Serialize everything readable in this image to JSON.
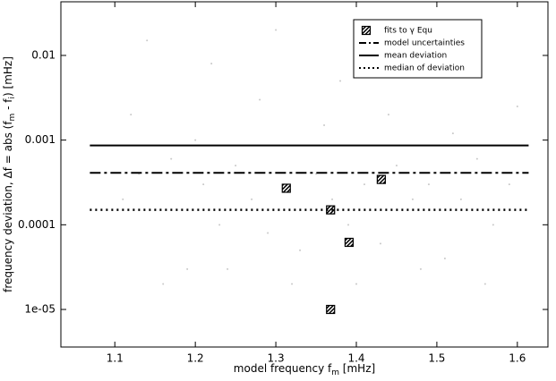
{
  "chart_data": {
    "type": "scatter",
    "x_label": [
      {
        "text": "model frequency f"
      },
      {
        "text": "m",
        "sub": true
      },
      {
        "text": " [mHz]"
      }
    ],
    "y_label": [
      {
        "text": "frequency deviation, Δf = abs (f"
      },
      {
        "text": "m",
        "sub": true
      },
      {
        "text": " - f"
      },
      {
        "text": "i",
        "sub": true
      },
      {
        "text": ") [mHz]"
      }
    ],
    "xlim": [
      1.033,
      1.638
    ],
    "xticks": [
      1.1,
      1.2,
      1.3,
      1.4,
      1.5,
      1.6
    ],
    "ylim": [
      3.6e-06,
      0.043
    ],
    "log_y": true,
    "yticks": [
      0.01,
      0.001,
      0.0001,
      {
        "value": 1e-05,
        "label": "1e-05"
      }
    ],
    "legend": "upper right",
    "series": [
      {
        "color": "#c8c8c8",
        "style": "dots",
        "x": [
          1.11,
          1.13,
          1.15,
          1.17,
          1.19,
          1.21,
          1.23,
          1.25,
          1.27,
          1.29,
          1.31,
          1.33,
          1.35,
          1.37,
          1.39,
          1.41,
          1.43,
          1.45,
          1.47,
          1.49,
          1.51,
          1.53,
          1.55,
          1.57,
          1.59,
          1.12,
          1.16,
          1.2,
          1.24,
          1.28,
          1.32,
          1.36,
          1.4,
          1.44,
          1.48,
          1.52,
          1.56,
          1.6,
          1.14,
          1.22,
          1.3,
          1.38,
          1.46,
          1.54
        ],
        "values": [
          0.0002,
          0.0004,
          0.00015,
          0.0006,
          3e-05,
          0.0003,
          0.0001,
          0.0005,
          0.0002,
          8e-05,
          0.0003,
          5e-05,
          0.0004,
          0.0002,
          0.0001,
          0.0003,
          6e-05,
          0.0005,
          0.0002,
          0.0003,
          4e-05,
          0.0002,
          0.0006,
          0.0001,
          0.0003,
          0.002,
          2e-05,
          0.001,
          3e-05,
          0.003,
          2e-05,
          0.0015,
          2e-05,
          0.002,
          3e-05,
          0.0012,
          2e-05,
          0.0025,
          0.015,
          0.008,
          0.02,
          0.005,
          0.012,
          0.006
        ]
      },
      {
        "name": "fits to γ Equ",
        "color": "#000000",
        "style": "hatched-square",
        "x": [
          1.313,
          1.368,
          1.391,
          1.431,
          1.368
        ],
        "values": [
          0.00027,
          0.00015,
          6.2e-05,
          0.000343,
          1e-05
        ]
      },
      {
        "name": "model uncertainties",
        "color": "#000000",
        "style": "dashdot",
        "x": [
          1.069,
          1.614
        ],
        "values": [
          0.00041,
          0.00041
        ]
      },
      {
        "name": "mean deviation",
        "color": "#000000",
        "style": "solid",
        "x": [
          1.069,
          1.614
        ],
        "values": [
          0.000865,
          0.000865
        ]
      },
      {
        "name": "median of deviation",
        "color": "#000000",
        "style": "dotted",
        "x": [
          1.069,
          1.614
        ],
        "values": [
          0.00015,
          0.00015
        ]
      }
    ]
  }
}
